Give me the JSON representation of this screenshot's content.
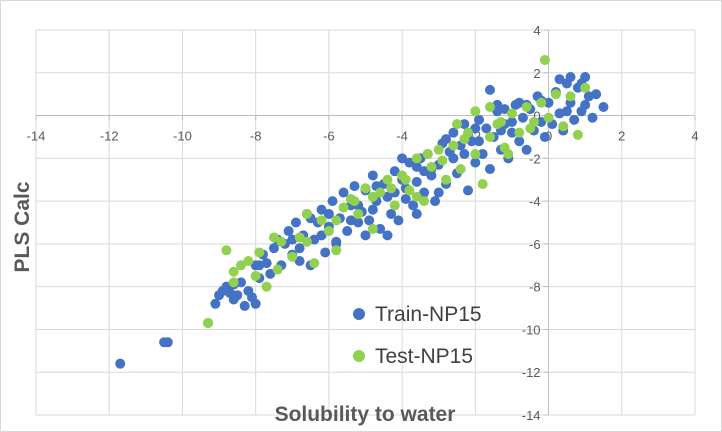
{
  "chart_data": {
    "type": "scatter",
    "title": "",
    "xlabel": "Solubility to water",
    "ylabel": "PLS Calc",
    "xlim": [
      -14,
      4
    ],
    "ylim": [
      -14,
      4
    ],
    "x_ticks": [
      -14,
      -12,
      -10,
      -8,
      -6,
      -4,
      -2,
      0,
      2,
      4
    ],
    "y_ticks": [
      -14,
      -12,
      -10,
      -8,
      -6,
      -4,
      -2,
      0,
      2,
      4
    ],
    "tick_labels_x": [
      "-14",
      "-12",
      "-10",
      "-8",
      "-6",
      "-4",
      "-2",
      "0",
      "2",
      "4"
    ],
    "tick_labels_y": [
      "-14",
      "-12",
      "-10",
      "-8",
      "-6",
      "-4",
      "-2",
      "0",
      "2",
      "4"
    ],
    "grid": "vertical and horizontal major gridlines",
    "legend_position": "bottom-right inside plot",
    "series": [
      {
        "name": "Train-NP15",
        "color": "#4472c4",
        "points": [
          [
            -11.7,
            -11.6
          ],
          [
            -10.5,
            -10.6
          ],
          [
            -10.4,
            -10.6
          ],
          [
            -9.3,
            -9.7
          ],
          [
            -9.1,
            -8.8
          ],
          [
            -9.0,
            -8.4
          ],
          [
            -8.9,
            -8.2
          ],
          [
            -8.8,
            -8.0
          ],
          [
            -8.7,
            -8.3
          ],
          [
            -8.6,
            -7.9
          ],
          [
            -8.5,
            -8.4
          ],
          [
            -8.4,
            -7.8
          ],
          [
            -8.3,
            -8.9
          ],
          [
            -8.2,
            -8.2
          ],
          [
            -8.1,
            -8.5
          ],
          [
            -8.0,
            -8.8
          ],
          [
            -8.0,
            -7.0
          ],
          [
            -7.9,
            -7.6
          ],
          [
            -7.8,
            -6.5
          ],
          [
            -7.7,
            -6.9
          ],
          [
            -7.5,
            -6.2
          ],
          [
            -7.4,
            -5.8
          ],
          [
            -7.3,
            -7.0
          ],
          [
            -7.2,
            -6.0
          ],
          [
            -7.1,
            -5.4
          ],
          [
            -7.0,
            -6.5
          ],
          [
            -6.9,
            -5.0
          ],
          [
            -6.8,
            -6.2
          ],
          [
            -6.7,
            -5.6
          ],
          [
            -6.6,
            -4.6
          ],
          [
            -6.5,
            -4.8
          ],
          [
            -6.4,
            -5.8
          ],
          [
            -6.3,
            -5.0
          ],
          [
            -6.2,
            -4.4
          ],
          [
            -6.1,
            -6.4
          ],
          [
            -6.0,
            -5.2
          ],
          [
            -5.9,
            -4.0
          ],
          [
            -5.8,
            -6.0
          ],
          [
            -5.7,
            -4.8
          ],
          [
            -5.6,
            -3.6
          ],
          [
            -5.5,
            -5.4
          ],
          [
            -5.4,
            -4.2
          ],
          [
            -5.3,
            -3.3
          ],
          [
            -5.2,
            -5.0
          ],
          [
            -5.1,
            -4.5
          ],
          [
            -5.0,
            -3.5
          ],
          [
            -4.9,
            -4.9
          ],
          [
            -4.8,
            -2.8
          ],
          [
            -4.7,
            -4.0
          ],
          [
            -4.6,
            -5.3
          ],
          [
            -4.5,
            -3.2
          ],
          [
            -4.4,
            -3.8
          ],
          [
            -4.3,
            -4.6
          ],
          [
            -4.2,
            -2.6
          ],
          [
            -4.1,
            -4.9
          ],
          [
            -4.0,
            -3.0
          ],
          [
            -3.9,
            -3.9
          ],
          [
            -3.8,
            -2.2
          ],
          [
            -3.7,
            -4.2
          ],
          [
            -3.6,
            -3.1
          ],
          [
            -3.5,
            -2.0
          ],
          [
            -3.4,
            -3.6
          ],
          [
            -3.3,
            -1.8
          ],
          [
            -3.2,
            -2.8
          ],
          [
            -3.1,
            -4.0
          ],
          [
            -3.0,
            -2.3
          ],
          [
            -2.9,
            -1.3
          ],
          [
            -2.8,
            -3.2
          ],
          [
            -2.7,
            -1.7
          ],
          [
            -2.6,
            -0.8
          ],
          [
            -2.5,
            -2.7
          ],
          [
            -2.4,
            -1.4
          ],
          [
            -2.3,
            -0.4
          ],
          [
            -2.2,
            -3.5
          ],
          [
            -2.1,
            -1.2
          ],
          [
            -2.0,
            -2.2
          ],
          [
            -1.9,
            -0.2
          ],
          [
            -1.8,
            -1.8
          ],
          [
            -1.7,
            -0.6
          ],
          [
            -1.6,
            -2.5
          ],
          [
            -1.5,
            -1.0
          ],
          [
            -1.4,
            0.2
          ],
          [
            -1.3,
            -1.6
          ],
          [
            -1.2,
            -0.4
          ],
          [
            -1.1,
            -2.0
          ],
          [
            -1.0,
            -0.8
          ],
          [
            -0.9,
            0.5
          ],
          [
            -0.8,
            -1.2
          ],
          [
            -0.7,
            -0.1
          ],
          [
            -0.6,
            -1.6
          ],
          [
            -0.5,
            0.3
          ],
          [
            -0.4,
            -0.7
          ],
          [
            -0.3,
            0.9
          ],
          [
            -0.2,
            -0.3
          ],
          [
            -0.1,
            -1.0
          ],
          [
            0.0,
            0.6
          ],
          [
            0.1,
            -0.4
          ],
          [
            0.2,
            1.1
          ],
          [
            0.3,
            0.1
          ],
          [
            0.4,
            -0.7
          ],
          [
            0.5,
            1.5
          ],
          [
            0.6,
            0.6
          ],
          [
            0.7,
            -0.2
          ],
          [
            0.8,
            1.3
          ],
          [
            0.9,
            0.2
          ],
          [
            1.0,
            1.8
          ],
          [
            1.1,
            0.9
          ],
          [
            1.2,
            -0.1
          ],
          [
            1.3,
            1.0
          ],
          [
            1.5,
            0.4
          ],
          [
            0.3,
            1.7
          ],
          [
            0.6,
            1.8
          ],
          [
            -1.6,
            1.2
          ],
          [
            -1.4,
            0.5
          ],
          [
            -3.0,
            -3.6
          ],
          [
            -3.6,
            -4.6
          ],
          [
            -4.4,
            -5.6
          ],
          [
            -5.8,
            -5.9
          ],
          [
            -6.5,
            -7.0
          ],
          [
            -5.0,
            -5.6
          ],
          [
            -4.7,
            -3.3
          ],
          [
            -4.0,
            -2.0
          ],
          [
            -2.6,
            -2.0
          ],
          [
            -2.0,
            -0.6
          ],
          [
            -1.2,
            0.3
          ],
          [
            -0.6,
            0.5
          ],
          [
            0.9,
            1.5
          ],
          [
            -1.3,
            -0.7
          ],
          [
            -2.3,
            -1.8
          ],
          [
            -3.4,
            -2.6
          ],
          [
            -4.2,
            -3.6
          ],
          [
            -5.2,
            -4.2
          ],
          [
            -6.0,
            -4.6
          ],
          [
            -7.0,
            -5.8
          ],
          [
            -7.6,
            -7.4
          ],
          [
            -8.6,
            -8.6
          ],
          [
            -7.9,
            -7.0
          ],
          [
            -6.8,
            -6.8
          ],
          [
            -6.2,
            -5.6
          ],
          [
            -5.4,
            -4.9
          ],
          [
            -4.8,
            -4.4
          ],
          [
            -3.9,
            -3.4
          ],
          [
            -3.2,
            -2.5
          ],
          [
            -2.8,
            -1.1
          ],
          [
            -1.9,
            -1.2
          ],
          [
            -1.0,
            -0.3
          ],
          [
            -0.2,
            0.7
          ],
          [
            0.5,
            0.2
          ],
          [
            1.0,
            0.5
          ],
          [
            -0.8,
            0.6
          ],
          [
            -2.2,
            -0.9
          ],
          [
            -3.6,
            -2.4
          ]
        ]
      },
      {
        "name": "Test-NP15",
        "color": "#92d050",
        "points": [
          [
            -9.3,
            -9.7
          ],
          [
            -8.8,
            -6.3
          ],
          [
            -8.6,
            -7.3
          ],
          [
            -8.4,
            -7.0
          ],
          [
            -8.2,
            -6.8
          ],
          [
            -8.0,
            -7.5
          ],
          [
            -7.9,
            -6.4
          ],
          [
            -7.7,
            -8.0
          ],
          [
            -7.5,
            -5.7
          ],
          [
            -7.3,
            -5.9
          ],
          [
            -7.0,
            -6.6
          ],
          [
            -6.8,
            -5.7
          ],
          [
            -6.6,
            -4.6
          ],
          [
            -6.4,
            -6.9
          ],
          [
            -6.2,
            -4.9
          ],
          [
            -6.0,
            -5.4
          ],
          [
            -5.8,
            -6.3
          ],
          [
            -5.6,
            -4.3
          ],
          [
            -5.4,
            -3.9
          ],
          [
            -5.2,
            -4.6
          ],
          [
            -5.0,
            -3.4
          ],
          [
            -4.8,
            -5.3
          ],
          [
            -4.6,
            -3.6
          ],
          [
            -4.4,
            -3.0
          ],
          [
            -4.2,
            -4.2
          ],
          [
            -4.0,
            -2.8
          ],
          [
            -3.8,
            -3.5
          ],
          [
            -3.6,
            -2.0
          ],
          [
            -3.4,
            -4.0
          ],
          [
            -3.2,
            -2.4
          ],
          [
            -3.0,
            -1.6
          ],
          [
            -2.8,
            -3.0
          ],
          [
            -2.6,
            -1.4
          ],
          [
            -2.4,
            -2.5
          ],
          [
            -2.2,
            -0.8
          ],
          [
            -2.0,
            -1.8
          ],
          [
            -1.8,
            -3.2
          ],
          [
            -1.6,
            -1.0
          ],
          [
            -1.4,
            -0.4
          ],
          [
            -1.2,
            -1.5
          ],
          [
            -1.0,
            0.1
          ],
          [
            -0.8,
            -0.8
          ],
          [
            -0.6,
            0.4
          ],
          [
            -0.4,
            -0.3
          ],
          [
            -0.2,
            0.6
          ],
          [
            0.0,
            -0.1
          ],
          [
            0.2,
            1.0
          ],
          [
            0.4,
            -0.5
          ],
          [
            0.6,
            0.9
          ],
          [
            0.8,
            -0.9
          ],
          [
            1.0,
            1.3
          ],
          [
            -0.1,
            2.6
          ],
          [
            -1.6,
            0.4
          ],
          [
            -2.9,
            -2.1
          ],
          [
            -3.9,
            -3.0
          ],
          [
            -4.8,
            -3.8
          ],
          [
            -5.8,
            -4.9
          ],
          [
            -6.6,
            -5.9
          ],
          [
            -7.4,
            -7.2
          ],
          [
            -8.6,
            -7.8
          ],
          [
            -2.3,
            -1.1
          ],
          [
            -1.3,
            -0.3
          ],
          [
            -0.5,
            -0.6
          ],
          [
            -3.3,
            -1.8
          ],
          [
            -4.3,
            -3.4
          ],
          [
            -5.3,
            -4.0
          ],
          [
            -2.0,
            0.2
          ],
          [
            -1.1,
            -1.8
          ],
          [
            -3.6,
            -3.8
          ],
          [
            -2.5,
            -0.4
          ]
        ]
      }
    ]
  }
}
